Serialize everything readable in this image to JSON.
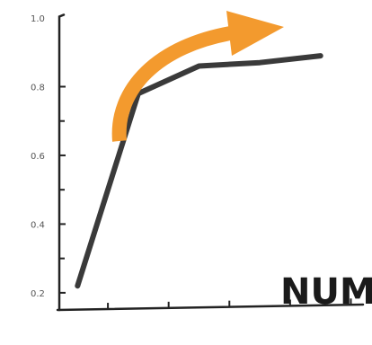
{
  "chart_data": {
    "type": "line",
    "title": "",
    "xlabel": "NUM",
    "ylabel": "",
    "x": [
      1,
      2,
      3,
      4,
      5
    ],
    "series": [
      {
        "values": [
          0.22,
          0.78,
          0.86,
          0.87,
          0.89
        ]
      }
    ],
    "ylim": [
      0.15,
      1.0
    ],
    "xlim": [
      0.7,
      5.7
    ],
    "y_ticks": [
      0.2,
      0.4,
      0.6,
      0.8,
      1.0
    ],
    "y_tick_labels": [
      "0.2",
      "0.4",
      "0.6",
      "0.8",
      "1.0"
    ],
    "x_ticks": [
      1.5,
      2.5,
      3.5,
      4.5,
      5.5
    ],
    "grid": false,
    "legend": "none",
    "annotation": {
      "kind": "curved-arrow",
      "direction": "up-right",
      "color": "#f39a2e"
    },
    "line_color": "#3a3a3a",
    "axis_color": "#222222"
  }
}
